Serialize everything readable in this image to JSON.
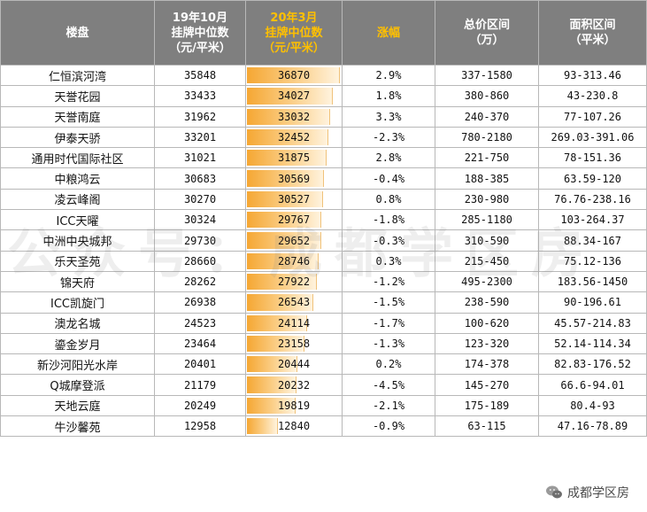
{
  "table": {
    "headers": [
      "楼盘",
      "19年10月\n挂牌中位数\n（元/平米）",
      "20年3月\n挂牌中位数\n（元/平米）",
      "涨幅",
      "总价区间\n（万）",
      "面积区间\n（平米）"
    ],
    "bar_max": 36870,
    "rows": [
      {
        "name": "仁恒滨河湾",
        "oct": "35848",
        "mar": "36870",
        "change": "2.9%",
        "price": "337-1580",
        "area": "93-313.46"
      },
      {
        "name": "天誉花园",
        "oct": "33433",
        "mar": "34027",
        "change": "1.8%",
        "price": "380-860",
        "area": "43-230.8"
      },
      {
        "name": "天誉南庭",
        "oct": "31962",
        "mar": "33032",
        "change": "3.3%",
        "price": "240-370",
        "area": "77-107.26"
      },
      {
        "name": "伊泰天骄",
        "oct": "33201",
        "mar": "32452",
        "change": "-2.3%",
        "price": "780-2180",
        "area": "269.03-391.06"
      },
      {
        "name": "通用时代国际社区",
        "oct": "31021",
        "mar": "31875",
        "change": "2.8%",
        "price": "221-750",
        "area": "78-151.36"
      },
      {
        "name": "中粮鸿云",
        "oct": "30683",
        "mar": "30569",
        "change": "-0.4%",
        "price": "188-385",
        "area": "63.59-120"
      },
      {
        "name": "凌云峰阁",
        "oct": "30270",
        "mar": "30527",
        "change": "0.8%",
        "price": "230-980",
        "area": "76.76-238.16"
      },
      {
        "name": "ICC天曜",
        "oct": "30324",
        "mar": "29767",
        "change": "-1.8%",
        "price": "285-1180",
        "area": "103-264.37"
      },
      {
        "name": "中洲中央城邦",
        "oct": "29730",
        "mar": "29652",
        "change": "-0.3%",
        "price": "310-590",
        "area": "88.34-167"
      },
      {
        "name": "乐天圣苑",
        "oct": "28660",
        "mar": "28746",
        "change": "0.3%",
        "price": "215-450",
        "area": "75.12-136"
      },
      {
        "name": "锦天府",
        "oct": "28262",
        "mar": "27922",
        "change": "-1.2%",
        "price": "495-2300",
        "area": "183.56-1450"
      },
      {
        "name": "ICC凯旋门",
        "oct": "26938",
        "mar": "26543",
        "change": "-1.5%",
        "price": "238-590",
        "area": "90-196.61"
      },
      {
        "name": "澳龙名城",
        "oct": "24523",
        "mar": "24114",
        "change": "-1.7%",
        "price": "100-620",
        "area": "45.57-214.83"
      },
      {
        "name": "鎏金岁月",
        "oct": "23464",
        "mar": "23158",
        "change": "-1.3%",
        "price": "123-320",
        "area": "52.14-114.34"
      },
      {
        "name": "新沙河阳光水岸",
        "oct": "20401",
        "mar": "20444",
        "change": "0.2%",
        "price": "174-378",
        "area": "82.83-176.52"
      },
      {
        "name": "Q城摩登派",
        "oct": "21179",
        "mar": "20232",
        "change": "-4.5%",
        "price": "145-270",
        "area": "66.6-94.01"
      },
      {
        "name": "天地云庭",
        "oct": "20249",
        "mar": "19819",
        "change": "-2.1%",
        "price": "175-189",
        "area": "80.4-93"
      },
      {
        "name": "牛沙馨苑",
        "oct": "12958",
        "mar": "12840",
        "change": "-0.9%",
        "price": "63-115",
        "area": "47.16-78.89"
      }
    ]
  },
  "watermark": "公众号：成都学区房",
  "brand": {
    "label": "成都学区房",
    "icon": "wechat-icon"
  }
}
